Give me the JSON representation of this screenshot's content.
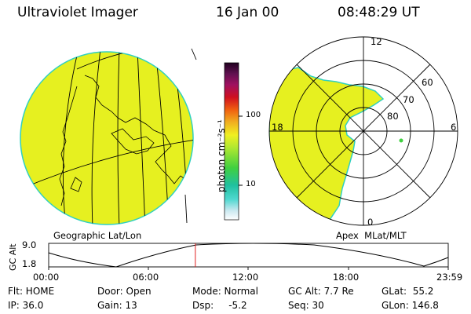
{
  "header": {
    "title": "Ultraviolet Imager",
    "date": "16 Jan 00",
    "time": "08:48:29 UT"
  },
  "colorbar": {
    "unit_label": "photon cm⁻²s⁻¹",
    "ticks": [
      "100",
      "10"
    ]
  },
  "polar": {
    "mlt_labels": {
      "top": "12",
      "bottom": "0",
      "left": "18",
      "right": "6"
    },
    "lat_labels": [
      "60",
      "70",
      "80"
    ]
  },
  "captions": {
    "geo": "Geographic Lat/Lon",
    "apex": "Apex  MLat/MLT"
  },
  "altitude_plot": {
    "ylabel": "GC Alt",
    "y_ticks": [
      "9.0",
      "1.8"
    ],
    "x_ticks": [
      "00:00",
      "06:00",
      "12:00",
      "18:00",
      "23:59"
    ],
    "current_time_hours": 8.81
  },
  "info": {
    "row1": [
      "Flt: HOME",
      "Door: Open",
      "Mode: Normal",
      "GC Alt: 7.7 Re",
      "GLat:  55.2"
    ],
    "row2": [
      "IP: 36.0",
      "Gain: 13",
      "Dsp:     -5.2",
      "Seq: 30",
      "GLon: 146.8"
    ]
  },
  "colors": {
    "image_fill": "#e6f020",
    "limb": "#30d0c0",
    "marker": "#e02020"
  }
}
